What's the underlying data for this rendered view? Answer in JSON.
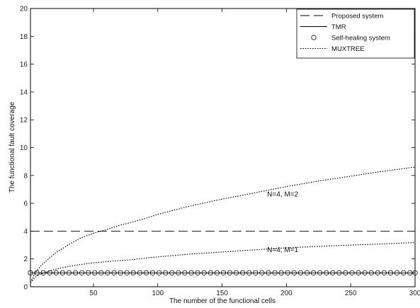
{
  "chart_data": {
    "type": "line",
    "title": "",
    "xlabel": "The number of the functional cells",
    "ylabel": "The functional fault coverage",
    "xlim": [
      1,
      300
    ],
    "ylim": [
      0,
      20
    ],
    "xticks": [
      50,
      100,
      150,
      200,
      250,
      300
    ],
    "yticks": [
      0,
      2,
      4,
      6,
      8,
      10,
      12,
      14,
      16,
      18,
      20
    ],
    "grid": false,
    "legend_position": "top-right",
    "series": [
      {
        "name": "Proposed system",
        "style": "dashed",
        "x": [
          1,
          300
        ],
        "y": [
          4,
          4
        ]
      },
      {
        "name": "TMR",
        "style": "solid",
        "x": [
          1,
          300
        ],
        "y": [
          1,
          1
        ]
      },
      {
        "name": "Self-healing system",
        "style": "circles",
        "x": [
          1,
          6,
          11,
          16,
          21,
          26,
          31,
          36,
          41,
          46,
          51,
          56,
          61,
          66,
          71,
          76,
          81,
          86,
          91,
          96,
          101,
          106,
          111,
          116,
          121,
          126,
          131,
          136,
          141,
          146,
          151,
          156,
          161,
          166,
          171,
          176,
          181,
          186,
          191,
          196,
          201,
          206,
          211,
          216,
          221,
          226,
          231,
          236,
          241,
          246,
          251,
          256,
          261,
          266,
          271,
          276,
          281,
          286,
          291,
          296,
          300
        ],
        "y": [
          1,
          1,
          1,
          1,
          1,
          1,
          1,
          1,
          1,
          1,
          1,
          1,
          1,
          1,
          1,
          1,
          1,
          1,
          1,
          1,
          1,
          1,
          1,
          1,
          1,
          1,
          1,
          1,
          1,
          1,
          1,
          1,
          1,
          1,
          1,
          1,
          1,
          1,
          1,
          1,
          1,
          1,
          1,
          1,
          1,
          1,
          1,
          1,
          1,
          1,
          1,
          1,
          1,
          1,
          1,
          1,
          1,
          1,
          1,
          1,
          1
        ]
      },
      {
        "name": "MUXTREE",
        "label": "N=4, M=2",
        "style": "dotted",
        "x": [
          1,
          5,
          10,
          20,
          30,
          40,
          50,
          60,
          70,
          80,
          90,
          100,
          125,
          150,
          175,
          200,
          225,
          250,
          275,
          300
        ],
        "y": [
          0.3,
          1.05,
          1.6,
          2.4,
          3.0,
          3.5,
          3.85,
          4.1,
          4.4,
          4.65,
          4.9,
          5.2,
          5.8,
          6.3,
          6.75,
          7.2,
          7.6,
          7.95,
          8.3,
          8.6
        ]
      },
      {
        "name": "MUXTREE",
        "label": "N=4, M=1",
        "style": "dotted",
        "x": [
          1,
          5,
          10,
          20,
          30,
          40,
          50,
          60,
          70,
          80,
          90,
          100,
          125,
          150,
          175,
          200,
          225,
          250,
          275,
          300
        ],
        "y": [
          0.3,
          0.7,
          0.95,
          1.25,
          1.45,
          1.6,
          1.72,
          1.8,
          1.88,
          1.95,
          2.05,
          2.15,
          2.35,
          2.5,
          2.65,
          2.8,
          2.9,
          3.0,
          3.08,
          3.18
        ]
      }
    ],
    "annotations": [
      {
        "text": "N=4, M=2",
        "x": 185,
        "y": 6.5
      },
      {
        "text": "N=4, M=1",
        "x": 185,
        "y": 2.5
      }
    ],
    "legend": [
      {
        "label": "Proposed system",
        "style": "dashed"
      },
      {
        "label": "TMR",
        "style": "solid"
      },
      {
        "label": "Self-healing system",
        "style": "circles"
      },
      {
        "label": "MUXTREE",
        "style": "dotted"
      }
    ]
  }
}
